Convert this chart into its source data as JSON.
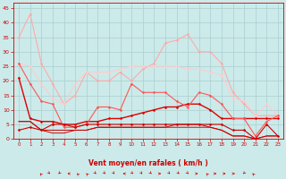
{
  "xlabel": "Vent moyen/en rafales ( km/h )",
  "background_color": "#cceaea",
  "grid_color": "#aacece",
  "x_ticks": [
    0,
    1,
    2,
    3,
    4,
    5,
    6,
    7,
    8,
    9,
    10,
    11,
    12,
    13,
    14,
    15,
    16,
    17,
    18,
    19,
    20,
    21,
    22,
    23
  ],
  "y_ticks": [
    0,
    5,
    10,
    15,
    20,
    25,
    30,
    35,
    40,
    45
  ],
  "ylim": [
    0,
    47
  ],
  "xlim": [
    -0.5,
    23.5
  ],
  "series": [
    {
      "x": [
        0,
        1,
        2,
        3,
        4,
        5,
        6,
        7,
        8,
        9,
        10,
        11,
        12,
        13,
        14,
        15,
        16,
        17,
        18,
        19,
        20,
        21,
        22,
        23
      ],
      "y": [
        35,
        43,
        26,
        19,
        12,
        15,
        23,
        20,
        20,
        23,
        20,
        24,
        26,
        33,
        34,
        36,
        30,
        30,
        26,
        16,
        12,
        8,
        8,
        8
      ],
      "color": "#ffaaaa",
      "lw": 0.8,
      "marker": "D",
      "ms": 1.5
    },
    {
      "x": [
        0,
        1,
        2,
        3,
        4,
        5,
        6,
        7,
        8,
        9,
        10,
        11,
        12,
        13,
        14,
        15,
        16,
        17,
        18,
        19,
        20,
        21,
        22,
        23
      ],
      "y": [
        26,
        25,
        19,
        14,
        12,
        19,
        23,
        23,
        23,
        24,
        25,
        25,
        25,
        25,
        25,
        24,
        24,
        23,
        22,
        14,
        13,
        8,
        12,
        8
      ],
      "color": "#ffcccc",
      "lw": 0.8,
      "marker": "D",
      "ms": 1.5
    },
    {
      "x": [
        0,
        1,
        2,
        3,
        4,
        5,
        6,
        7,
        8,
        9,
        10,
        11,
        12,
        13,
        14,
        15,
        16,
        17,
        18,
        19,
        20,
        21,
        22,
        23
      ],
      "y": [
        21,
        7,
        6,
        6,
        5,
        5,
        6,
        6,
        7,
        7,
        8,
        9,
        10,
        11,
        11,
        12,
        12,
        10,
        7,
        7,
        7,
        7,
        7,
        7
      ],
      "color": "#dd0000",
      "lw": 1.0,
      "marker": "D",
      "ms": 1.5
    },
    {
      "x": [
        0,
        1,
        2,
        3,
        4,
        5,
        6,
        7,
        8,
        9,
        10,
        11,
        12,
        13,
        14,
        15,
        16,
        17,
        18,
        19,
        20,
        21,
        22,
        23
      ],
      "y": [
        26,
        19,
        13,
        12,
        4,
        4,
        5,
        11,
        11,
        10,
        19,
        16,
        16,
        16,
        13,
        11,
        16,
        15,
        12,
        7,
        7,
        1,
        6,
        8
      ],
      "color": "#ff5555",
      "lw": 0.8,
      "marker": "D",
      "ms": 1.5
    },
    {
      "x": [
        0,
        1,
        2,
        3,
        4,
        5,
        6,
        7,
        8,
        9,
        10,
        11,
        12,
        13,
        14,
        15,
        16,
        17,
        18,
        19,
        20,
        21,
        22,
        23
      ],
      "y": [
        3,
        4,
        3,
        5,
        5,
        4,
        5,
        5,
        5,
        5,
        5,
        5,
        5,
        5,
        5,
        5,
        5,
        5,
        5,
        3,
        3,
        0,
        5,
        1
      ],
      "color": "#cc0000",
      "lw": 0.8,
      "marker": "D",
      "ms": 1.5
    },
    {
      "x": [
        0,
        1,
        2,
        3,
        4,
        5,
        6,
        7,
        8,
        9,
        10,
        11,
        12,
        13,
        14,
        15,
        16,
        17,
        18,
        19,
        20,
        21,
        22,
        23
      ],
      "y": [
        6,
        6,
        3,
        3,
        3,
        3,
        3,
        4,
        4,
        4,
        4,
        4,
        4,
        4,
        5,
        5,
        5,
        4,
        3,
        1,
        1,
        0,
        1,
        1
      ],
      "color": "#cc0000",
      "lw": 0.7,
      "marker": null,
      "ms": 0
    },
    {
      "x": [
        0,
        1,
        2,
        3,
        4,
        5,
        6,
        7,
        8,
        9,
        10,
        11,
        12,
        13,
        14,
        15,
        16,
        17,
        18,
        19,
        20,
        21,
        22,
        23
      ],
      "y": [
        6,
        6,
        3,
        2,
        2,
        3,
        3,
        4,
        4,
        4,
        4,
        4,
        4,
        4,
        4,
        4,
        4,
        4,
        3,
        1,
        1,
        0,
        1,
        1
      ],
      "color": "#cc0000",
      "lw": 0.7,
      "marker": null,
      "ms": 0
    }
  ],
  "arrow_angles": [
    225,
    45,
    315,
    270,
    225,
    225,
    45,
    45,
    45,
    270,
    45,
    45,
    45,
    90,
    45,
    45,
    45,
    90,
    225,
    90,
    90,
    90,
    315,
    225
  ]
}
